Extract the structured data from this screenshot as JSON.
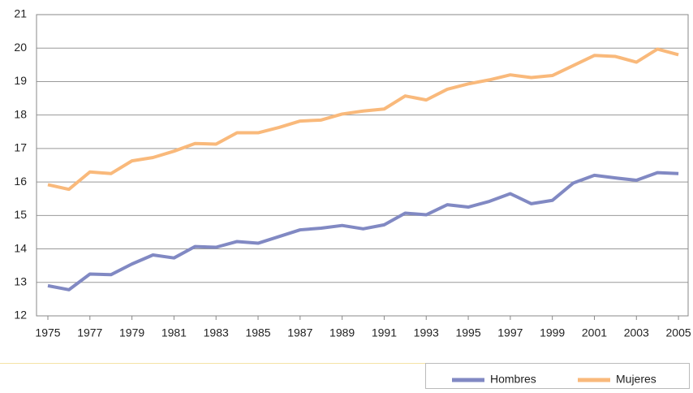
{
  "chart_data": {
    "type": "line",
    "x": [
      1975,
      1976,
      1977,
      1978,
      1979,
      1980,
      1981,
      1982,
      1983,
      1984,
      1985,
      1986,
      1987,
      1988,
      1989,
      1990,
      1991,
      1992,
      1993,
      1994,
      1995,
      1996,
      1997,
      1998,
      1999,
      2000,
      2001,
      2002,
      2003,
      2004,
      2005
    ],
    "series": [
      {
        "name": "Hombres",
        "color": "#8189c3",
        "values": [
          12.9,
          12.78,
          13.25,
          13.23,
          13.55,
          13.82,
          13.73,
          14.07,
          14.05,
          14.22,
          14.17,
          14.37,
          14.57,
          14.62,
          14.7,
          14.6,
          14.72,
          15.07,
          15.02,
          15.32,
          15.25,
          15.42,
          15.65,
          15.35,
          15.45,
          15.97,
          16.2,
          16.12,
          16.05,
          16.28,
          16.25
        ]
      },
      {
        "name": "Mujeres",
        "color": "#f9b97b",
        "values": [
          15.92,
          15.78,
          16.3,
          16.25,
          16.63,
          16.73,
          16.92,
          17.15,
          17.13,
          17.47,
          17.47,
          17.63,
          17.82,
          17.85,
          18.03,
          18.12,
          18.18,
          18.57,
          18.45,
          18.77,
          18.93,
          19.05,
          19.2,
          19.12,
          19.18,
          19.48,
          19.78,
          19.75,
          19.58,
          19.97,
          19.8
        ]
      }
    ],
    "xlim": [
      1974.46,
      2005.46
    ],
    "xticks": [
      1975,
      1977,
      1979,
      1981,
      1983,
      1985,
      1987,
      1989,
      1991,
      1993,
      1995,
      1997,
      1999,
      2001,
      2003,
      2005
    ],
    "ylim": [
      12,
      21
    ],
    "yticks": [
      12,
      13,
      14,
      15,
      16,
      17,
      18,
      19,
      20,
      21
    ],
    "grid": true,
    "legend": "bottom-right"
  }
}
